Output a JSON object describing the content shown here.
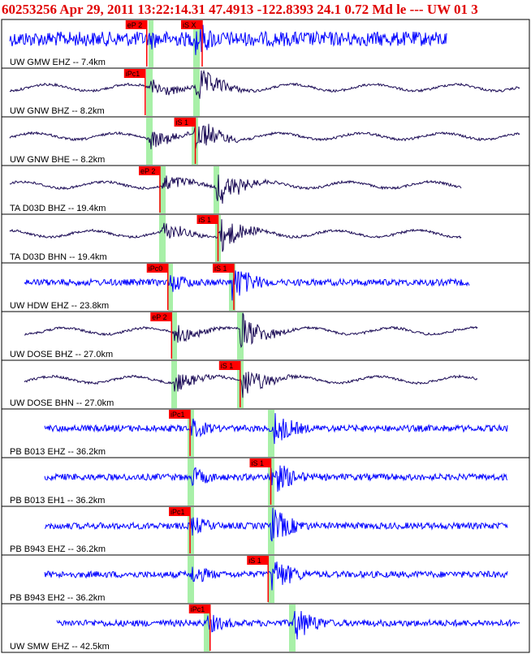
{
  "header": {
    "title": "60253256 Apr 29, 2011 13:22:14.31    47.4913 -122.8393 24.1 0.72 Md le --- UW 01    3"
  },
  "colors": {
    "trace_blue": "#0000ff",
    "trace_dark": "#1a0a55",
    "pick_red": "#ff0000",
    "window_green": "#a8f0a8",
    "border": "#000000",
    "title_red": "#e00000"
  },
  "panels": [
    {
      "label": "UW GMW EHZ -- 7.4km",
      "color": "blue",
      "picks": [
        {
          "text": "eP 2",
          "pos": 0.275
        },
        {
          "text": "iS X",
          "pos": 0.38
        }
      ]
    },
    {
      "label": "UW GNW BHZ -- 8.2km",
      "color": "dark",
      "picks": [
        {
          "text": "iPc1",
          "pos": 0.272
        }
      ]
    },
    {
      "label": "UW GNW BHE -- 8.2km",
      "color": "dark",
      "picks": [
        {
          "text": "iS 1",
          "pos": 0.367
        }
      ]
    },
    {
      "label": "TA D03D BHZ -- 19.4km",
      "color": "dark",
      "picks": [
        {
          "text": "eP 2",
          "pos": 0.3
        }
      ]
    },
    {
      "label": "TA D03D BHN -- 19.4km",
      "color": "dark",
      "picks": [
        {
          "text": "iS 1",
          "pos": 0.41
        }
      ]
    },
    {
      "label": "UW HDW EHZ -- 23.8km",
      "color": "blue",
      "picks": [
        {
          "text": "iPc0",
          "pos": 0.315
        },
        {
          "text": "iS 1",
          "pos": 0.44
        }
      ]
    },
    {
      "label": "UW DOSE BHZ -- 27.0km",
      "color": "dark",
      "picks": [
        {
          "text": "eP 2",
          "pos": 0.322
        }
      ]
    },
    {
      "label": "UW DOSE BHN -- 27.0km",
      "color": "dark",
      "picks": [
        {
          "text": "iS 1",
          "pos": 0.452
        }
      ]
    },
    {
      "label": "PB B013 EHZ -- 36.2km",
      "color": "blue",
      "picks": [
        {
          "text": "iPc1",
          "pos": 0.357
        }
      ]
    },
    {
      "label": "PB B013 EH1 -- 36.2km",
      "color": "blue",
      "picks": [
        {
          "text": "iS 1",
          "pos": 0.51
        }
      ]
    },
    {
      "label": "PB B943 EHZ -- 36.2km",
      "color": "blue",
      "picks": [
        {
          "text": "iPc1",
          "pos": 0.357
        }
      ]
    },
    {
      "label": "PB B943 EH2 -- 36.2km",
      "color": "blue",
      "picks": [
        {
          "text": "iS 1",
          "pos": 0.505
        }
      ]
    },
    {
      "label": "UW SMW EHZ -- 42.5km",
      "color": "blue",
      "picks": [
        {
          "text": "iPc1",
          "pos": 0.395
        }
      ]
    }
  ]
}
